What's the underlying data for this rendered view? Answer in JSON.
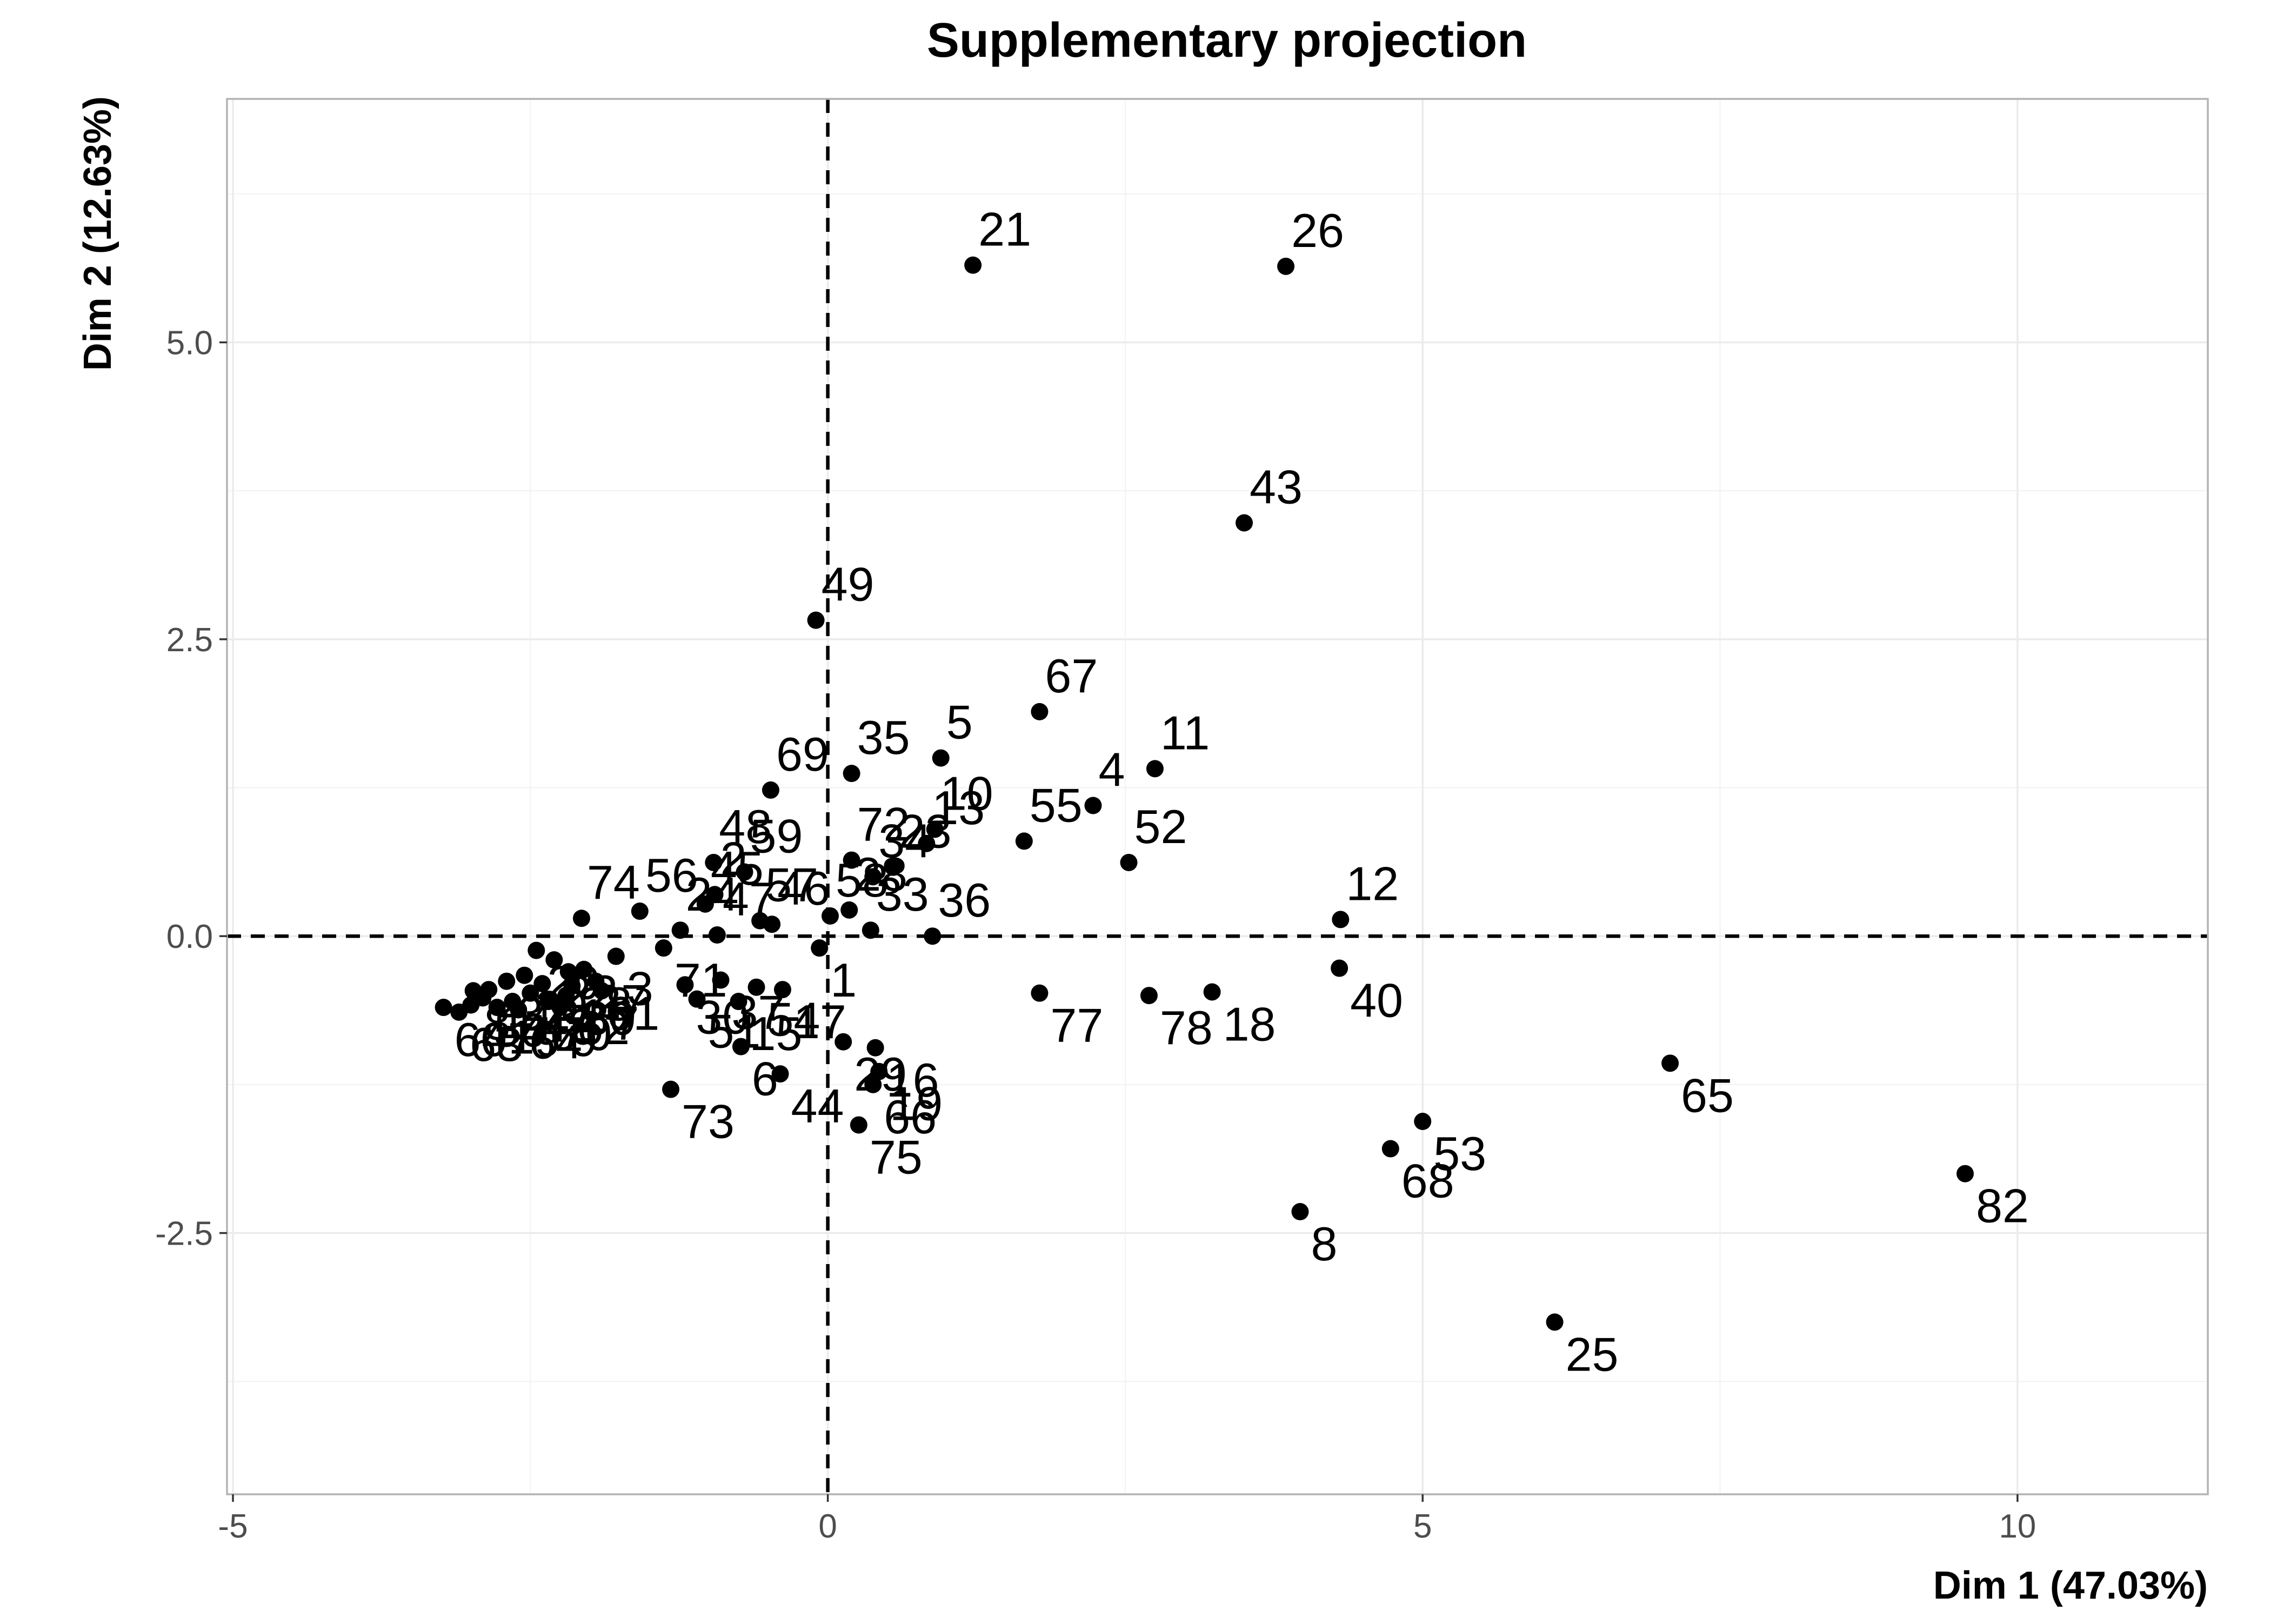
{
  "chart_data": {
    "type": "scatter",
    "title": "Supplementary projection",
    "xlabel": "Dim 1 (47.03%)",
    "ylabel": "Dim 2 (12.63%)",
    "xlim": [
      -5.05,
      11.6
    ],
    "ylim": [
      -4.7,
      7.05
    ],
    "xticks": [
      -5,
      0,
      5,
      10
    ],
    "xtick_labels": [
      "-5",
      "0",
      "5",
      "10"
    ],
    "yticks": [
      -2.5,
      0,
      2.5,
      5
    ],
    "ytick_labels": [
      "-2.5",
      "0.0",
      "2.5",
      "5.0"
    ],
    "grid": true,
    "reference_lines": {
      "x": 0,
      "y": 0,
      "style": "dashed"
    },
    "colors": {
      "points": "#000000",
      "grid": "#ebebeb",
      "panel_border": "#b3b3b3",
      "tick_text": "#4d4d4d"
    },
    "points": [
      {
        "label": "21",
        "x": 1.22,
        "y": 5.65
      },
      {
        "label": "26",
        "x": 3.85,
        "y": 5.64
      },
      {
        "label": "43",
        "x": 3.5,
        "y": 3.48
      },
      {
        "label": "49",
        "x": -0.1,
        "y": 2.66
      },
      {
        "label": "67",
        "x": 1.78,
        "y": 1.89
      },
      {
        "label": "11",
        "x": 2.75,
        "y": 1.41
      },
      {
        "label": "5",
        "x": 0.95,
        "y": 1.5
      },
      {
        "label": "35",
        "x": 0.2,
        "y": 1.37
      },
      {
        "label": "4",
        "x": 2.23,
        "y": 1.1
      },
      {
        "label": "69",
        "x": -0.48,
        "y": 1.23
      },
      {
        "label": "10",
        "x": 0.9,
        "y": 0.9
      },
      {
        "label": "13",
        "x": 0.83,
        "y": 0.78
      },
      {
        "label": "55",
        "x": 1.65,
        "y": 0.8
      },
      {
        "label": "52",
        "x": 2.53,
        "y": 0.62
      },
      {
        "label": "72",
        "x": 0.2,
        "y": 0.64
      },
      {
        "label": "23",
        "x": 0.55,
        "y": 0.58
      },
      {
        "label": "28",
        "x": 0.18,
        "y": 0.22
      },
      {
        "label": "34",
        "x": 0.38,
        "y": 0.5
      },
      {
        "label": "33",
        "x": 0.36,
        "y": 0.05
      },
      {
        "label": "36",
        "x": 0.88,
        "y": 0.0
      },
      {
        "label": "12",
        "x": 4.31,
        "y": 0.14
      },
      {
        "label": "40",
        "x": 4.3,
        "y": -0.27
      },
      {
        "label": "77",
        "x": 1.78,
        "y": -0.48
      },
      {
        "label": "78",
        "x": 2.7,
        "y": -0.5
      },
      {
        "label": "18",
        "x": 3.23,
        "y": -0.47
      },
      {
        "label": "65",
        "x": 7.08,
        "y": -1.07
      },
      {
        "label": "53",
        "x": 5.0,
        "y": -1.56
      },
      {
        "label": "68",
        "x": 4.73,
        "y": -1.79
      },
      {
        "label": "82",
        "x": 9.56,
        "y": -2.0
      },
      {
        "label": "8",
        "x": 3.97,
        "y": -2.32
      },
      {
        "label": "25",
        "x": 6.11,
        "y": -3.25
      },
      {
        "label": "48",
        "x": -0.96,
        "y": 0.62
      },
      {
        "label": "59",
        "x": -0.7,
        "y": 0.54
      },
      {
        "label": "2",
        "x": -0.95,
        "y": 0.35
      },
      {
        "label": "45",
        "x": -1.03,
        "y": 0.27
      },
      {
        "label": "57",
        "x": -0.57,
        "y": 0.13
      },
      {
        "label": "46",
        "x": -0.47,
        "y": 0.1
      },
      {
        "label": "74",
        "x": -2.07,
        "y": 0.15
      },
      {
        "label": "56",
        "x": -1.58,
        "y": 0.21
      },
      {
        "label": "24",
        "x": -1.24,
        "y": 0.05
      },
      {
        "label": "47",
        "x": -0.93,
        "y": 0.01
      },
      {
        "label": "17",
        "x": -0.38,
        "y": -0.45
      },
      {
        "label": "1",
        "x": -0.07,
        "y": -0.1
      },
      {
        "label": "58",
        "x": 0.02,
        "y": 0.17
      },
      {
        "label": "3",
        "x": -1.78,
        "y": -0.17
      },
      {
        "label": "71",
        "x": -1.38,
        "y": -0.1
      },
      {
        "label": "30",
        "x": -1.2,
        "y": -0.41
      },
      {
        "label": "37",
        "x": -0.9,
        "y": -0.37
      },
      {
        "label": "15",
        "x": -0.75,
        "y": -0.55
      },
      {
        "label": "54",
        "x": -0.6,
        "y": -0.43
      },
      {
        "label": "51",
        "x": -1.1,
        "y": -0.53
      },
      {
        "label": "6",
        "x": -0.73,
        "y": -0.93
      },
      {
        "label": "44",
        "x": -0.4,
        "y": -1.16
      },
      {
        "label": "73",
        "x": -1.32,
        "y": -1.29
      },
      {
        "label": "29",
        "x": 0.13,
        "y": -0.89
      },
      {
        "label": "16",
        "x": 0.4,
        "y": -0.94
      },
      {
        "label": "66",
        "x": 0.38,
        "y": -1.25
      },
      {
        "label": "19",
        "x": 0.43,
        "y": -1.14
      },
      {
        "label": "75",
        "x": 0.26,
        "y": -1.59
      },
      {
        "label": "39",
        "x": -2.55,
        "y": -0.33
      },
      {
        "label": "38",
        "x": -2.18,
        "y": -0.3
      },
      {
        "label": "62",
        "x": -2.2,
        "y": -0.5
      },
      {
        "label": "76",
        "x": -2.65,
        "y": -0.55
      },
      {
        "label": "41",
        "x": -3.0,
        "y": -0.58
      },
      {
        "label": "63",
        "x": -3.1,
        "y": -0.64
      },
      {
        "label": "60",
        "x": -3.23,
        "y": -0.6
      },
      {
        "label": "14",
        "x": -2.85,
        "y": -0.45
      },
      {
        "label": "20",
        "x": -2.45,
        "y": -0.12
      },
      {
        "label": "22",
        "x": -2.3,
        "y": -0.2
      },
      {
        "label": "27",
        "x": -2.05,
        "y": -0.28
      },
      {
        "label": "31",
        "x": -2.4,
        "y": -0.4
      },
      {
        "label": "32",
        "x": -2.7,
        "y": -0.38
      },
      {
        "label": "42",
        "x": -2.5,
        "y": -0.48
      },
      {
        "label": "50",
        "x": -2.9,
        "y": -0.52
      },
      {
        "label": "61",
        "x": -1.95,
        "y": -0.38
      },
      {
        "label": "64",
        "x": -2.6,
        "y": -0.62
      },
      {
        "label": "70",
        "x": -2.35,
        "y": -0.55
      },
      {
        "label": "79",
        "x": -2.78,
        "y": -0.6
      },
      {
        "label": "80",
        "x": -2.15,
        "y": -0.42
      },
      {
        "label": "81",
        "x": -2.98,
        "y": -0.46
      },
      {
        "label": "7",
        "x": -1.9,
        "y": -0.46
      },
      {
        "label": "9",
        "x": -2.25,
        "y": -0.6
      }
    ]
  }
}
